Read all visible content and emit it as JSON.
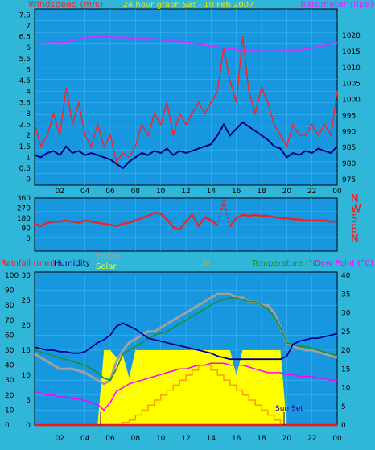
{
  "colors": {
    "background": "#2fb6d8",
    "plot_bg": "#1797e0",
    "grid": "#3fb7f0",
    "border": "#000000",
    "wind_avg": "#00007a",
    "wind_gust": "#ff2020",
    "barometer": "#cc33ff",
    "wind_dir": "#e8262a",
    "rainfall": "#ff1010",
    "humidity": "#000090",
    "thsw": "#a0a0a0",
    "solar": "#ffff00",
    "uv": "#ff9a00",
    "temperature": "#1a9030",
    "dew_point": "#ff00ff",
    "title": "#e8e800"
  },
  "x_ticks": [
    "02",
    "04",
    "06",
    "08",
    "10",
    "12",
    "14",
    "16",
    "18",
    "20",
    "22",
    "00"
  ],
  "chart_data": [
    {
      "type": "line",
      "title": "24 hour graph Sat - 10 Feb 2007",
      "ylabel": "Windspeed (m/s)",
      "y2label": "Barometer (hpa)",
      "ylim": [
        0,
        7.5
      ],
      "y2lim": [
        975,
        1022.5
      ],
      "y_ticks": [
        "0",
        "0.5",
        "1",
        "1.5",
        "2",
        "2.5",
        "3",
        "3.5",
        "4",
        "4.5",
        "5",
        "5.5",
        "6",
        "6.5",
        "7",
        "7.5"
      ],
      "y2_ticks": [
        "975",
        "980",
        "985",
        "990",
        "995",
        "1000",
        "1005",
        "1010",
        "1015",
        "1020"
      ],
      "x": [
        0,
        0.5,
        1,
        1.5,
        2,
        2.5,
        3,
        3.5,
        4,
        4.5,
        5,
        5.5,
        6,
        6.5,
        7,
        7.5,
        8,
        8.5,
        9,
        9.5,
        10,
        10.5,
        11,
        11.5,
        12,
        12.5,
        13,
        13.5,
        14,
        14.5,
        15,
        15.5,
        16,
        16.5,
        17,
        17.5,
        18,
        18.5,
        19,
        19.5,
        20,
        20.5,
        21,
        21.5,
        22,
        22.5,
        23,
        23.5,
        24
      ],
      "series": [
        {
          "name": "Windspeed gust",
          "axis": "left",
          "values": [
            2.5,
            1.5,
            2.0,
            3.0,
            2.0,
            4.2,
            2.5,
            3.5,
            2.0,
            1.5,
            2.5,
            1.5,
            2.0,
            0.8,
            1.2,
            1.0,
            1.5,
            2.5,
            2.0,
            3.0,
            2.5,
            3.5,
            2.0,
            3.0,
            2.5,
            3.0,
            3.5,
            3.0,
            3.5,
            4.0,
            6.0,
            4.5,
            3.5,
            6.5,
            4.0,
            3.0,
            4.2,
            3.5,
            2.5,
            2.0,
            1.5,
            2.5,
            2.0,
            2.0,
            2.5,
            2.0,
            2.5,
            2.0,
            4.0
          ]
        },
        {
          "name": "Windspeed average",
          "axis": "left",
          "values": [
            1.1,
            1.0,
            1.2,
            1.3,
            1.1,
            1.5,
            1.2,
            1.3,
            1.1,
            1.2,
            1.1,
            1.0,
            0.9,
            0.7,
            0.5,
            0.8,
            1.0,
            1.2,
            1.1,
            1.3,
            1.2,
            1.4,
            1.1,
            1.3,
            1.2,
            1.3,
            1.4,
            1.5,
            1.6,
            2.0,
            2.5,
            2.0,
            2.3,
            2.6,
            2.4,
            2.2,
            2.0,
            1.8,
            1.5,
            1.4,
            1.0,
            1.2,
            1.1,
            1.3,
            1.2,
            1.4,
            1.3,
            1.2,
            1.5
          ]
        },
        {
          "name": "Barometer",
          "axis": "right",
          "values": [
            1017.5,
            1017.5,
            1017.6,
            1017.7,
            1017.8,
            1018.0,
            1018.3,
            1018.8,
            1019.3,
            1019.6,
            1019.7,
            1019.6,
            1019.5,
            1019.4,
            1019.4,
            1019.3,
            1019.2,
            1019.1,
            1019.0,
            1018.9,
            1018.7,
            1018.5,
            1018.3,
            1018.1,
            1017.9,
            1017.6,
            1017.3,
            1017.0,
            1016.7,
            1016.4,
            1016.1,
            1015.9,
            1015.6,
            1015.4,
            1015.3,
            1015.2,
            1015.1,
            1015.1,
            1015.1,
            1015.1,
            1015.2,
            1015.3,
            1015.5,
            1015.8,
            1016.1,
            1016.5,
            1017.0,
            1017.5,
            1017.8
          ]
        }
      ]
    },
    {
      "type": "scatter",
      "ylim": [
        0,
        360
      ],
      "y_ticks": [
        "0",
        "90",
        "180",
        "270",
        "360"
      ],
      "compass": [
        "N",
        "W",
        "S",
        "E",
        "N"
      ],
      "x": [
        0,
        0.5,
        1,
        1.5,
        2,
        2.5,
        3,
        3.5,
        4,
        4.5,
        5,
        5.5,
        6,
        6.5,
        7,
        7.5,
        8,
        8.5,
        9,
        9.5,
        10,
        10.5,
        11,
        11.5,
        12,
        12.5,
        13,
        13.5,
        14,
        14.5,
        15,
        15.5,
        16,
        16.5,
        17,
        17.5,
        18,
        18.5,
        19,
        19.5,
        20,
        20.5,
        21,
        21.5,
        22,
        22.5,
        23,
        23.5,
        24
      ],
      "series": [
        {
          "name": "Wind direction",
          "values": [
            130,
            110,
            140,
            150,
            150,
            160,
            150,
            140,
            160,
            150,
            140,
            130,
            120,
            110,
            130,
            140,
            160,
            180,
            200,
            230,
            220,
            170,
            100,
            80,
            150,
            210,
            110,
            190,
            160,
            120,
            330,
            110,
            180,
            210,
            200,
            210,
            200,
            200,
            190,
            180,
            180,
            170,
            170,
            160,
            160,
            160,
            160,
            150,
            150
          ]
        }
      ]
    },
    {
      "type": "line",
      "ylabels": [
        "Rainfall (mm)",
        "Humidity",
        "THSW",
        "Solar",
        "UV",
        "Temperature (°C)",
        "Dew Point (°C)"
      ],
      "ylim_rain": [
        0,
        100
      ],
      "ylim_humidity": [
        0,
        30
      ],
      "ylim_temp": [
        0,
        40
      ],
      "rain_ticks": [
        "0",
        "10",
        "20",
        "30",
        "40",
        "50",
        "60",
        "70",
        "80",
        "90",
        "100"
      ],
      "humidity_ticks": [
        "0",
        "5",
        "10",
        "15",
        "20",
        "25",
        "30"
      ],
      "temp_ticks": [
        "0",
        "5",
        "10",
        "15",
        "20",
        "25",
        "30",
        "35",
        "40"
      ],
      "annotation": "Sun Set",
      "x": [
        0,
        0.5,
        1,
        1.5,
        2,
        2.5,
        3,
        3.5,
        4,
        4.5,
        5,
        5.5,
        6,
        6.5,
        7,
        7.5,
        8,
        8.5,
        9,
        9.5,
        10,
        10.5,
        11,
        11.5,
        12,
        12.5,
        13,
        13.5,
        14,
        14.5,
        15,
        15.5,
        16,
        16.5,
        17,
        17.5,
        18,
        18.5,
        19,
        19.5,
        20,
        20.5,
        21,
        21.5,
        22,
        22.5,
        23,
        23.5,
        24
      ],
      "series": [
        {
          "name": "Humidity",
          "axis": "rain",
          "values": [
            52,
            51,
            50,
            50,
            49,
            49,
            48,
            48,
            49,
            52,
            55,
            57,
            60,
            66,
            68,
            66,
            64,
            61,
            58,
            57,
            56,
            55,
            54,
            53,
            52,
            51,
            50,
            49,
            48,
            46,
            45,
            44,
            44,
            44,
            44,
            44,
            44,
            44,
            44,
            44,
            46,
            54,
            56,
            57,
            58,
            58,
            59,
            60,
            61
          ]
        },
        {
          "name": "THSW",
          "axis": "temp",
          "values": [
            19,
            18,
            17,
            16,
            15,
            15,
            15,
            14.5,
            14,
            13,
            12,
            11,
            12,
            17,
            20,
            22,
            23,
            24,
            25,
            25,
            26,
            27,
            28,
            29,
            30,
            31,
            32,
            33,
            34,
            35,
            35,
            35,
            34,
            34,
            33,
            33,
            32,
            32,
            30,
            26,
            22,
            21,
            20.5,
            20,
            20,
            19.5,
            19,
            18.5,
            18
          ]
        },
        {
          "name": "Temperature",
          "axis": "temp",
          "values": [
            20,
            19.5,
            19,
            18.5,
            18,
            17.5,
            17,
            16.5,
            16,
            15,
            14,
            12.5,
            12,
            15,
            19,
            20,
            21,
            22,
            23,
            24,
            24.5,
            25,
            26,
            27,
            28,
            29,
            30,
            31,
            32,
            33,
            33.5,
            34,
            34,
            33.5,
            33,
            33,
            32,
            31,
            29,
            26,
            22,
            21.5,
            21,
            21,
            20.5,
            20,
            19.5,
            19,
            18.5
          ]
        },
        {
          "name": "Dew Point",
          "axis": "temp",
          "values": [
            9,
            8.5,
            8,
            8,
            7.5,
            7.5,
            7,
            7,
            6.5,
            6,
            5.5,
            4,
            6,
            9,
            10,
            11,
            11.5,
            12,
            12.5,
            13,
            13.5,
            14,
            14.5,
            15,
            15,
            15.5,
            16,
            16,
            16.5,
            16.5,
            16.5,
            16,
            16,
            16,
            15.5,
            15,
            14.5,
            14,
            14,
            14,
            13.5,
            13.5,
            13,
            13,
            13,
            12.5,
            12.5,
            12,
            12
          ]
        },
        {
          "name": "Solar",
          "axis": "humidity",
          "values": [
            0,
            0,
            0,
            0,
            0,
            0,
            0,
            0,
            0,
            0,
            0,
            15,
            15,
            13.5,
            14,
            9.5,
            15,
            15,
            15,
            15,
            15,
            15,
            15,
            15,
            15,
            15,
            15,
            15,
            15,
            15,
            15,
            15,
            10,
            15,
            15,
            15,
            15,
            15,
            15,
            15,
            0,
            0,
            0,
            0,
            0,
            0,
            0,
            0,
            0
          ]
        },
        {
          "name": "UV",
          "axis": "humidity",
          "values": [
            0,
            0,
            0,
            0,
            0,
            0,
            0,
            0,
            0,
            0,
            0,
            0,
            0,
            0,
            0.5,
            1,
            2,
            3,
            4,
            5,
            6,
            7,
            8,
            9,
            10,
            11,
            12,
            12,
            11,
            10,
            9,
            8,
            7,
            6,
            5,
            4,
            3,
            2,
            1,
            0,
            0,
            0,
            0,
            0,
            0,
            0,
            0,
            0,
            0
          ]
        },
        {
          "name": "Rainfall",
          "axis": "rain",
          "values": [
            0,
            0,
            0,
            0,
            0,
            0,
            0,
            0,
            0,
            0,
            0,
            0,
            0,
            0,
            0,
            0,
            0,
            0,
            0,
            0,
            0,
            0,
            0,
            0,
            0,
            0,
            0,
            0,
            0,
            0,
            0,
            0,
            0,
            0,
            0,
            0,
            0,
            0,
            0,
            0,
            0,
            0,
            0,
            0,
            0,
            0,
            0,
            0,
            0
          ]
        }
      ]
    }
  ]
}
